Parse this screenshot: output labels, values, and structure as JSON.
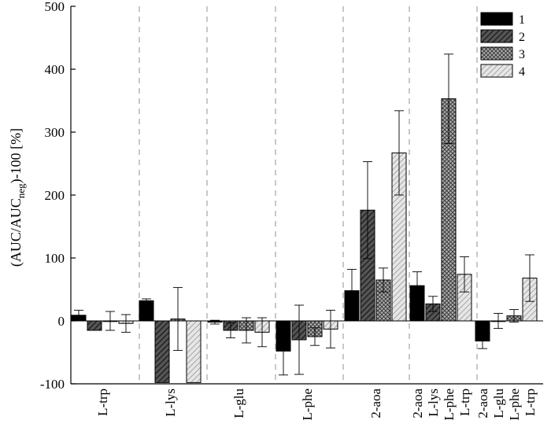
{
  "chart_data": {
    "type": "bar",
    "title": "",
    "xlabel": "",
    "ylabel": {
      "prefix": "(AUC/AUC",
      "subscript": "neg",
      "suffix": ")-100 [%]"
    },
    "ylim": [
      -100,
      500
    ],
    "yticks": [
      -100,
      0,
      100,
      200,
      300,
      400,
      500
    ],
    "grid": false,
    "legend_position": "top-right",
    "series_styles": {
      "1": {
        "fill": "#000000",
        "pattern": "solid"
      },
      "2": {
        "fill": "#3a3a3a",
        "pattern": "diagonal-dark"
      },
      "3": {
        "fill": "#9a9a9a",
        "pattern": "crosshatch"
      },
      "4": {
        "fill": "#dcdcdc",
        "pattern": "diagonal-light"
      }
    },
    "legend": [
      "1",
      "2",
      "3",
      "4"
    ],
    "groups": [
      {
        "label": "L-trp",
        "bars": [
          {
            "series": "1",
            "value": 9,
            "error": 8
          },
          {
            "series": "2",
            "value": -15,
            "error": 0
          },
          {
            "series": "3",
            "value": 0,
            "error": 15
          },
          {
            "series": "4",
            "value": -4,
            "error": 14
          }
        ]
      },
      {
        "label": "L-lys",
        "bars": [
          {
            "series": "1",
            "value": 32,
            "error": 3
          },
          {
            "series": "2",
            "value": -98,
            "error": 0
          },
          {
            "series": "3",
            "value": 3,
            "error": 50
          },
          {
            "series": "4",
            "value": -98,
            "error": 0
          }
        ]
      },
      {
        "label": "L-glu",
        "bars": [
          {
            "series": "1",
            "value": -2,
            "error": 3
          },
          {
            "series": "2",
            "value": -15,
            "error": 12
          },
          {
            "series": "3",
            "value": -15,
            "error": 20
          },
          {
            "series": "4",
            "value": -18,
            "error": 23
          }
        ]
      },
      {
        "label": "L-phe",
        "bars": [
          {
            "series": "1",
            "value": -48,
            "error": 38
          },
          {
            "series": "2",
            "value": -30,
            "error": 55
          },
          {
            "series": "3",
            "value": -25,
            "error": 14
          },
          {
            "series": "4",
            "value": -13,
            "error": 30
          }
        ]
      },
      {
        "label": "2-aoa",
        "bars": [
          {
            "series": "1",
            "value": 48,
            "error": 34
          },
          {
            "series": "2",
            "value": 176,
            "error": 77
          },
          {
            "series": "3",
            "value": 65,
            "error": 19
          },
          {
            "series": "4",
            "value": 267,
            "error": 67
          }
        ]
      },
      {
        "labels": [
          "2-aoa",
          "L-lys",
          "L-phe",
          "L-trp"
        ],
        "bars": [
          {
            "series": "1",
            "value": 56,
            "error": 22
          },
          {
            "series": "2",
            "value": 27,
            "error": 12
          },
          {
            "series": "3",
            "value": 353,
            "error": 71
          },
          {
            "series": "4",
            "value": 74,
            "error": 28
          }
        ]
      },
      {
        "labels": [
          "2-aoa",
          "L-glu",
          "L-phe",
          "L-trp"
        ],
        "bars": [
          {
            "series": "1",
            "value": -32,
            "error": 12
          },
          {
            "series": "2",
            "value": 0,
            "error": 12
          },
          {
            "series": "3",
            "value": 8,
            "error": 10
          },
          {
            "series": "4",
            "value": 68,
            "error": 37
          }
        ]
      }
    ]
  }
}
